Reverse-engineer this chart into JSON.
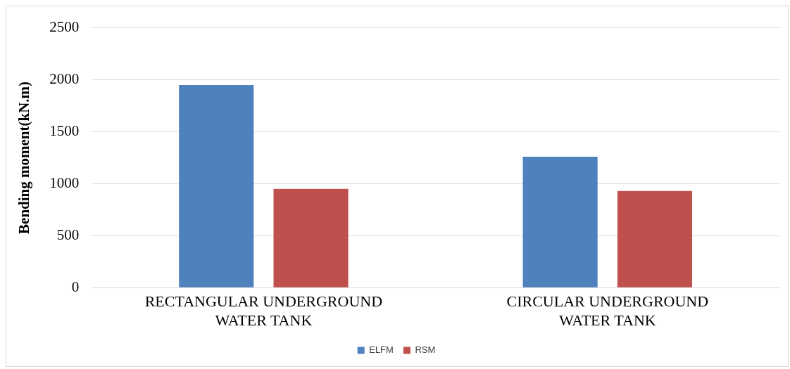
{
  "chart_data": {
    "type": "bar",
    "ylabel": "Bending moment(kN.m)",
    "categories": [
      "RECTANGULAR UNDERGROUND\nWATER TANK",
      "CIRCULAR UNDERGROUND\nWATER TANK"
    ],
    "series": [
      {
        "name": "ELFM",
        "color": "#4f81bd",
        "values": [
          1950,
          1260
        ]
      },
      {
        "name": "RSM",
        "color": "#c0504d",
        "values": [
          950,
          930
        ]
      }
    ],
    "ylim": [
      0,
      2500
    ],
    "yticks": [
      0,
      500,
      1000,
      1500,
      2000,
      2500
    ],
    "grid": "y",
    "legend": "bottom"
  }
}
